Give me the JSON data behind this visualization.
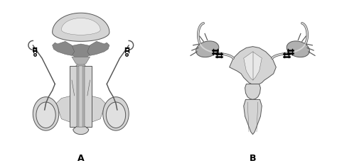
{
  "label_A": "A",
  "label_B": "B",
  "bg_color": "#ffffff",
  "lc": "#555555",
  "fl": "#d4d4d4",
  "fm": "#b0b0b0",
  "fd": "#888888",
  "fig_width": 4.74,
  "fig_height": 2.37,
  "dpi": 100
}
